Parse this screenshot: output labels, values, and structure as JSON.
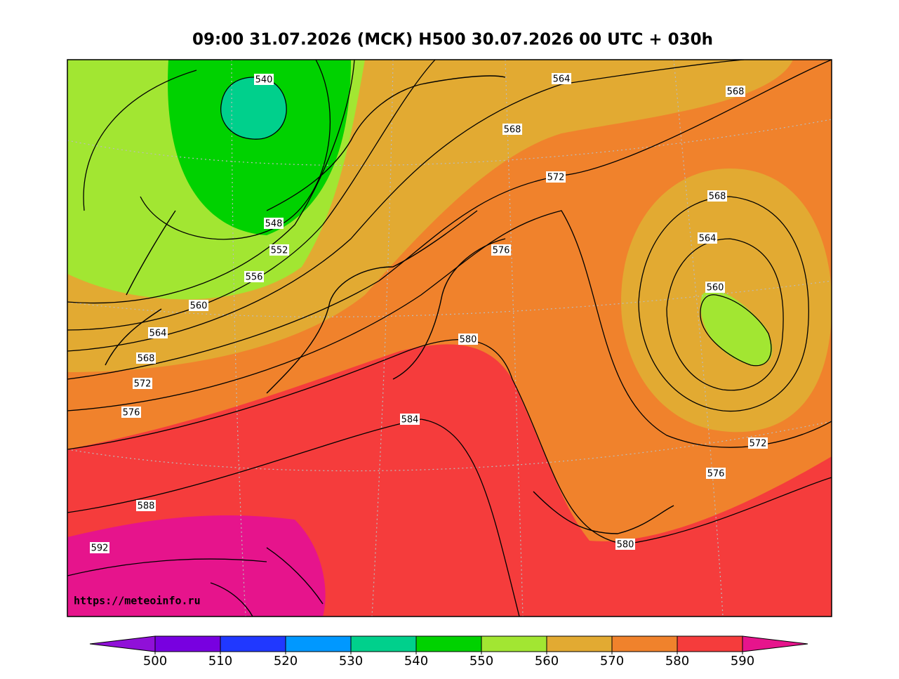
{
  "header": {
    "title": "09:00 31.07.2026 (МСК) H500  30.07.2026 00 UTC + 030h"
  },
  "map": {
    "contour_labels": [
      540,
      564,
      568,
      568,
      572,
      568,
      564,
      548,
      552,
      576,
      556,
      560,
      560,
      564,
      580,
      568,
      572,
      576,
      584,
      572,
      576,
      588,
      592,
      580
    ],
    "watermark": "https://meteoinfo.ru"
  },
  "colorbar": {
    "ticks": [
      500,
      510,
      520,
      530,
      540,
      550,
      560,
      570,
      580,
      590
    ],
    "colors": [
      "#9010d8",
      "#7800e0",
      "#2038ff",
      "#0098ff",
      "#00d08c",
      "#00d200",
      "#a2e632",
      "#e2aa32",
      "#f0822c",
      "#f53c3c",
      "#e6148c"
    ]
  }
}
